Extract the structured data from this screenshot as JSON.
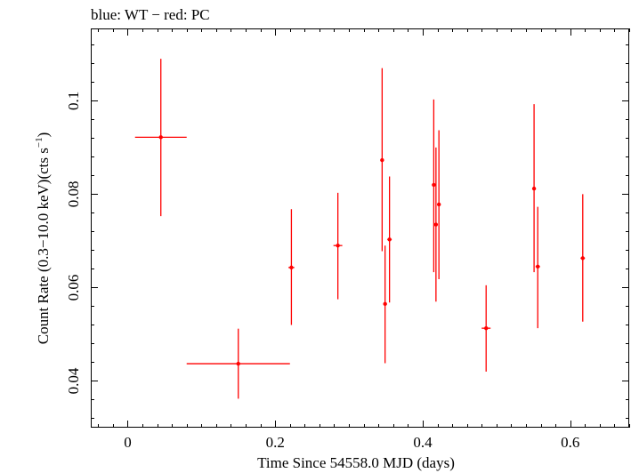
{
  "chart_data": {
    "type": "scatter",
    "title": "blue: WT − red: PC",
    "xlabel": "Time Since 54558.0 MJD (days)",
    "ylabel_main": "Count Rate (0.3−10.0 keV)(cts s",
    "ylabel_sup": "−1",
    "ylabel_end": ")",
    "xlim": [
      -0.05,
      0.68
    ],
    "ylim": [
      0.03,
      0.1155
    ],
    "x_ticks": [
      0,
      0.2,
      0.4,
      0.6
    ],
    "x_tick_labels": [
      "0",
      "0.2",
      "0.4",
      "0.6"
    ],
    "y_ticks": [
      0.04,
      0.06,
      0.08,
      0.1
    ],
    "y_tick_labels": [
      "0.04",
      "0.06",
      "0.08",
      "0.1"
    ],
    "grid": false,
    "series": [
      {
        "color": "#ff0000",
        "points": [
          {
            "x": 0.045,
            "xerr": 0.035,
            "y": 0.0922,
            "ylo": 0.0753,
            "yhi": 0.109
          },
          {
            "x": 0.15,
            "xerr": 0.07,
            "y": 0.0437,
            "ylo": 0.0362,
            "yhi": 0.0512
          },
          {
            "x": 0.222,
            "xerr": 0.004,
            "y": 0.0643,
            "ylo": 0.052,
            "yhi": 0.0768
          },
          {
            "x": 0.285,
            "xerr": 0.006,
            "y": 0.069,
            "ylo": 0.0575,
            "yhi": 0.0803
          },
          {
            "x": 0.345,
            "xerr": 0.002,
            "y": 0.0873,
            "ylo": 0.0678,
            "yhi": 0.107
          },
          {
            "x": 0.349,
            "xerr": 0.002,
            "y": 0.0565,
            "ylo": 0.0438,
            "yhi": 0.069
          },
          {
            "x": 0.355,
            "xerr": 0.003,
            "y": 0.0703,
            "ylo": 0.0568,
            "yhi": 0.0838
          },
          {
            "x": 0.415,
            "xerr": 0.002,
            "y": 0.082,
            "ylo": 0.0633,
            "yhi": 0.1003
          },
          {
            "x": 0.418,
            "xerr": 0.002,
            "y": 0.0735,
            "ylo": 0.057,
            "yhi": 0.09
          },
          {
            "x": 0.422,
            "xerr": 0.002,
            "y": 0.0778,
            "ylo": 0.0618,
            "yhi": 0.0937
          },
          {
            "x": 0.486,
            "xerr": 0.006,
            "y": 0.0513,
            "ylo": 0.042,
            "yhi": 0.0605
          },
          {
            "x": 0.551,
            "xerr": 0.002,
            "y": 0.0812,
            "ylo": 0.0633,
            "yhi": 0.0993
          },
          {
            "x": 0.556,
            "xerr": 0.003,
            "y": 0.0645,
            "ylo": 0.0513,
            "yhi": 0.0773
          },
          {
            "x": 0.617,
            "xerr": 0.003,
            "y": 0.0663,
            "ylo": 0.0527,
            "yhi": 0.08
          }
        ]
      }
    ]
  }
}
